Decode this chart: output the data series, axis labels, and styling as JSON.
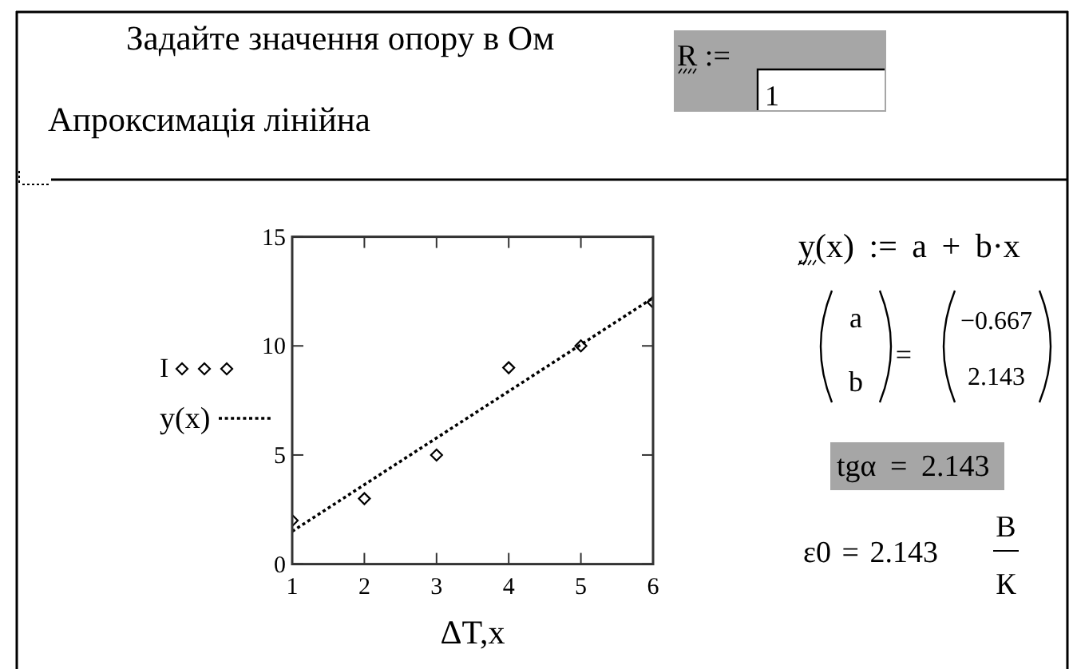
{
  "chart_data": {
    "type": "scatter",
    "xlabel": "ΔT,x",
    "xlim": [
      1,
      6
    ],
    "ylim": [
      0,
      15
    ],
    "xticks": [
      1,
      2,
      3,
      4,
      5,
      6
    ],
    "yticks": [
      0,
      5,
      10,
      15
    ],
    "legend": "left",
    "series": [
      {
        "name": "I",
        "color": "#000000",
        "marker": "diamond",
        "x": [
          1,
          2,
          3,
          4,
          5,
          6
        ],
        "values": [
          2,
          3,
          5,
          9,
          10,
          12
        ]
      },
      {
        "name": "y(x)",
        "type": "line",
        "color": "#000000",
        "marker": "none",
        "line_style": "dotted",
        "x": [
          1,
          6
        ],
        "values": [
          1.5,
          12.2
        ]
      }
    ],
    "annotations": [
      "Задайте значення опору в Ом",
      "R :=",
      "1",
      "Апроксимація лінійна",
      "y(x) := a + b·x",
      "a",
      "b",
      "=",
      "−0.667",
      "2.143",
      "tgα = 2.143",
      "ε0 = 2.143",
      "В",
      "К"
    ]
  }
}
